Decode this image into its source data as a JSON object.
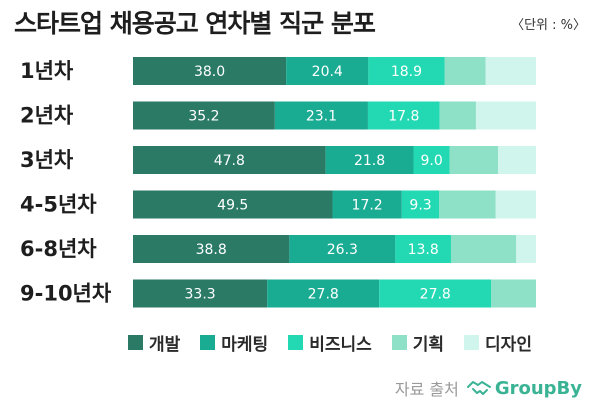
{
  "title": "스타트업 채용공고 연차별 직군 분포",
  "unit": "〈단위 : %〉",
  "source": {
    "label": "자료 출처",
    "brand": "GroupBy",
    "brand_icon": "handshake-icon",
    "brand_color": "#3ab394"
  },
  "chart_data": {
    "type": "bar",
    "orientation": "horizontal",
    "stacked": true,
    "categories": [
      "1년차",
      "2년차",
      "3년차",
      "4-5년차",
      "6-8년차",
      "9-10년차"
    ],
    "xlim": [
      0,
      100
    ],
    "legend_position": "bottom",
    "grid": false,
    "series": [
      {
        "name": "개발",
        "color": "#2a7a66",
        "values": [
          38.0,
          35.2,
          47.8,
          49.5,
          38.8,
          33.3
        ],
        "labels": [
          "38.0",
          "35.2",
          "47.8",
          "49.5",
          "38.8",
          "33.3"
        ]
      },
      {
        "name": "마케팅",
        "color": "#1aab93",
        "values": [
          20.4,
          23.1,
          21.8,
          17.2,
          26.3,
          27.8
        ],
        "labels": [
          "20.4",
          "23.1",
          "21.8",
          "17.2",
          "26.3",
          "27.8"
        ]
      },
      {
        "name": "비즈니스",
        "color": "#22d9b3",
        "values": [
          18.9,
          17.8,
          9.0,
          9.3,
          13.8,
          27.8
        ],
        "labels": [
          "18.9",
          "17.8",
          "9.0",
          "9.3",
          "13.8",
          "27.8"
        ]
      },
      {
        "name": "기획",
        "color": "#8ee0c6",
        "values": [
          10.2,
          9.0,
          12.0,
          14.0,
          16.2,
          11.1
        ],
        "labels": [
          "",
          "",
          "",
          "",
          "",
          ""
        ]
      },
      {
        "name": "디자인",
        "color": "#cff5ec",
        "values": [
          12.5,
          14.9,
          9.4,
          10.0,
          4.9,
          0.0
        ],
        "labels": [
          "",
          "",
          "",
          "",
          "",
          ""
        ]
      }
    ]
  }
}
